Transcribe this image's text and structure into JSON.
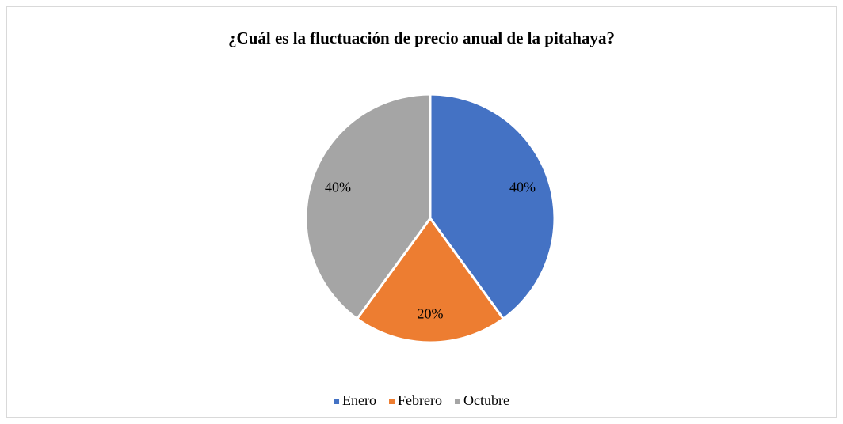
{
  "chart_data": {
    "type": "pie",
    "title": "¿Cuál es la fluctuación de precio anual de la pitahaya?",
    "categories": [
      "Enero",
      "Febrero",
      "Octubre"
    ],
    "values": [
      40,
      20,
      40
    ],
    "value_labels": [
      "40%",
      "20%",
      "40%"
    ],
    "colors": [
      "#4472c4",
      "#ed7d31",
      "#a5a5a5"
    ],
    "legend": "bottom"
  }
}
